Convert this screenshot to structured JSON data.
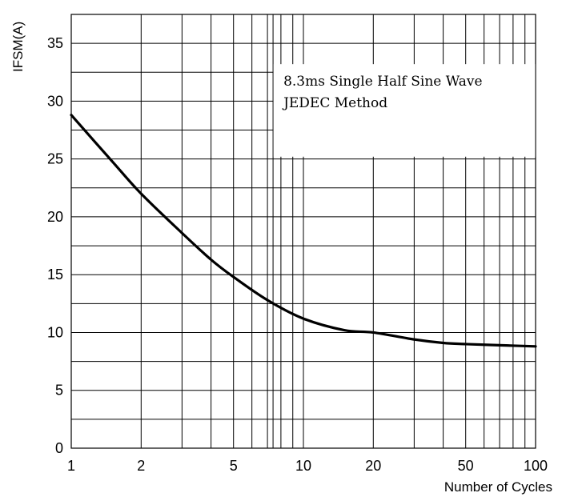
{
  "chart_data": {
    "type": "line",
    "title": "",
    "xlabel": "Number of Cycles",
    "ylabel": "IFSM(A)",
    "x_scale": "log",
    "xlim": [
      1,
      100
    ],
    "ylim": [
      0,
      37.5
    ],
    "grid": true,
    "x_ticks": [
      1,
      2,
      5,
      10,
      20,
      50,
      100
    ],
    "x_tick_labels": [
      "1",
      "2",
      "5",
      "10",
      "20",
      "50",
      "100"
    ],
    "y_ticks": [
      0,
      5,
      10,
      15,
      20,
      25,
      30,
      35
    ],
    "y_tick_labels": [
      "0",
      "5",
      "10",
      "15",
      "20",
      "25",
      "30",
      "35"
    ],
    "annotation": [
      "8.3ms Single Half Sine Wave",
      "JEDEC Method"
    ],
    "series": [
      {
        "x": [
          1,
          1.5,
          2,
          3,
          4,
          5,
          7,
          10,
          15,
          20,
          30,
          40,
          50,
          70,
          100
        ],
        "y": [
          28.8,
          24.8,
          22.0,
          18.6,
          16.3,
          14.8,
          12.8,
          11.2,
          10.2,
          10.0,
          9.4,
          9.1,
          9.0,
          8.9,
          8.8
        ]
      }
    ],
    "line_color": "#000000"
  }
}
